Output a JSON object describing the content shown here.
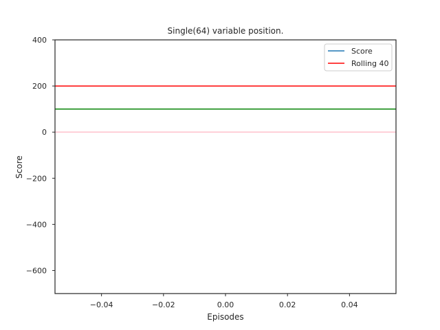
{
  "chart_data": {
    "type": "line",
    "title": "Single(64) variable position.",
    "xlabel": "Episodes",
    "ylabel": "Score",
    "xlim": [
      -0.055,
      0.055
    ],
    "ylim": [
      -700,
      400
    ],
    "xticks": [
      -0.04,
      -0.02,
      0.0,
      0.02,
      0.04
    ],
    "xtick_labels": [
      "−0.04",
      "−0.02",
      "0.00",
      "0.02",
      "0.04"
    ],
    "yticks": [
      400,
      200,
      0,
      -200,
      -400,
      -600
    ],
    "ytick_labels": [
      "400",
      "200",
      "0",
      "−200",
      "−400",
      "−600"
    ],
    "grid": false,
    "legend_position": "top-right",
    "series": [
      {
        "name": "Score",
        "color": "#1f77b4",
        "points": []
      },
      {
        "name": "Rolling 40",
        "color": "#ff0000",
        "points": []
      }
    ],
    "reference_lines": [
      {
        "y": 200,
        "color": "#ff0000"
      },
      {
        "y": 100,
        "color": "#008000"
      },
      {
        "y": 0,
        "color": "#ffc0cb"
      }
    ]
  }
}
